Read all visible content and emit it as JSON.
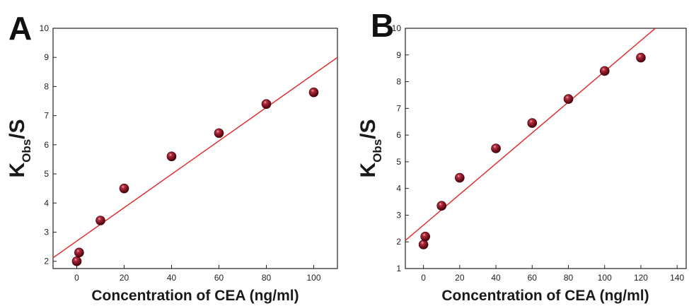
{
  "chart_data": [
    {
      "panel_label": "A",
      "type": "scatter",
      "xlabel": "Concentration of CEA (ng/ml)",
      "ylabel_main": "K",
      "ylabel_sub": "Obs",
      "ylabel_suffix": "/S",
      "xlim": [
        -10,
        110
      ],
      "ylim": [
        1.75,
        10
      ],
      "xticks": [
        0,
        20,
        40,
        60,
        80,
        100
      ],
      "yticks": [
        2,
        3,
        4,
        5,
        6,
        7,
        8,
        9,
        10
      ],
      "points": [
        {
          "x": 0,
          "y": 2.0
        },
        {
          "x": 1,
          "y": 2.3
        },
        {
          "x": 10,
          "y": 3.4
        },
        {
          "x": 20,
          "y": 4.5
        },
        {
          "x": 40,
          "y": 5.6
        },
        {
          "x": 60,
          "y": 6.4
        },
        {
          "x": 80,
          "y": 7.4
        },
        {
          "x": 100,
          "y": 7.8
        }
      ],
      "fit_line": {
        "x_start": -10,
        "y_start": 2.12,
        "x_end": 110,
        "y_end": 9.0
      },
      "marker_color": "#7a1020",
      "line_color": "#e03030",
      "grid": false
    },
    {
      "panel_label": "B",
      "type": "scatter",
      "xlabel": "Concentration of CEA (ng/ml)",
      "ylabel_main": "K",
      "ylabel_sub": "Obs",
      "ylabel_suffix": "/S",
      "xlim": [
        -10,
        145
      ],
      "ylim": [
        1,
        10
      ],
      "xticks": [
        0,
        20,
        40,
        60,
        80,
        100,
        120,
        140
      ],
      "yticks": [
        1,
        2,
        3,
        4,
        5,
        6,
        7,
        8,
        9,
        10
      ],
      "points": [
        {
          "x": 0,
          "y": 1.9
        },
        {
          "x": 1,
          "y": 2.2
        },
        {
          "x": 10,
          "y": 3.35
        },
        {
          "x": 20,
          "y": 4.4
        },
        {
          "x": 40,
          "y": 5.5
        },
        {
          "x": 60,
          "y": 6.45
        },
        {
          "x": 80,
          "y": 7.35
        },
        {
          "x": 100,
          "y": 8.4
        },
        {
          "x": 120,
          "y": 8.9
        }
      ],
      "fit_line": {
        "x_start": -10,
        "y_start": 2.05,
        "x_end": 128,
        "y_end": 10.0
      },
      "marker_color": "#7a1020",
      "line_color": "#e03030",
      "grid": false
    }
  ]
}
